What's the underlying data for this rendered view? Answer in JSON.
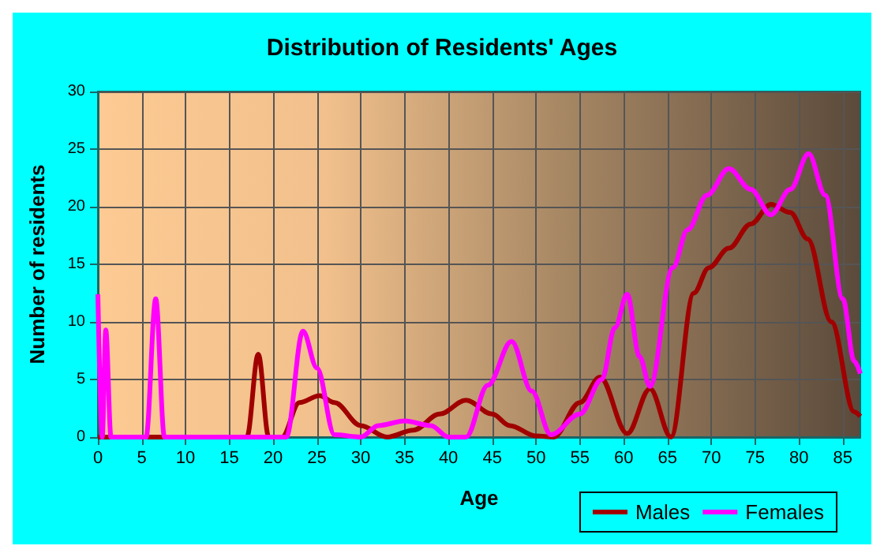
{
  "chart_data": {
    "type": "line",
    "title": "Distribution of Residents' Ages",
    "xlabel": "Age",
    "ylabel": "Number of residents",
    "xlim": [
      0,
      87
    ],
    "xticks": [
      0,
      5,
      10,
      15,
      20,
      25,
      30,
      35,
      40,
      45,
      50,
      55,
      60,
      65,
      70,
      75,
      80,
      85
    ],
    "ylim": [
      0,
      30
    ],
    "yticks": [
      0,
      5,
      10,
      15,
      20,
      25,
      30
    ],
    "grid": true,
    "legend": "bottom right",
    "marker": "none",
    "line_style": "solid",
    "series": [
      {
        "name": "Males",
        "color": "#a00000",
        "x": [
          0,
          17,
          18.3,
          19.5,
          21,
          23,
          25.3,
          27,
          30,
          33,
          36,
          39,
          42,
          45,
          47,
          50,
          52,
          55,
          57.3,
          60.4,
          63,
          65.4,
          68,
          69.7,
          72,
          74.5,
          76.8,
          79,
          81,
          83.7,
          86.3,
          87
        ],
        "values": [
          0,
          0,
          7.2,
          0,
          0,
          3,
          3.6,
          3,
          1,
          0,
          0.6,
          2,
          3.2,
          2,
          1,
          0.1,
          0,
          3,
          5.2,
          0.3,
          4.2,
          0,
          12.5,
          14.7,
          16.4,
          18.5,
          20.2,
          19.5,
          17.2,
          10,
          2.2,
          1.8
        ]
      },
      {
        "name": "Females",
        "color": "#ff00ff",
        "x": [
          0,
          0.5,
          0.9,
          1.5,
          5.5,
          6.6,
          7.6,
          21.5,
          23.4,
          25,
          27,
          30,
          32,
          35,
          38,
          40,
          42,
          44.5,
          47.2,
          49.5,
          51.7,
          55,
          57.5,
          59,
          60.4,
          61.8,
          63,
          65.6,
          67.3,
          69.5,
          72,
          74.5,
          76.8,
          79,
          81.1,
          83,
          85,
          86.3,
          87
        ],
        "values": [
          12.4,
          0,
          9.3,
          0,
          0,
          12,
          0,
          0,
          9.2,
          6,
          0.2,
          0,
          1,
          1.4,
          1,
          0,
          0,
          4.5,
          8.3,
          4,
          0.2,
          2,
          5,
          9.5,
          12.4,
          7,
          4.4,
          14.7,
          18,
          21,
          23.3,
          21.5,
          19.3,
          21.5,
          24.6,
          21,
          12,
          6.6,
          5.5
        ]
      }
    ]
  }
}
